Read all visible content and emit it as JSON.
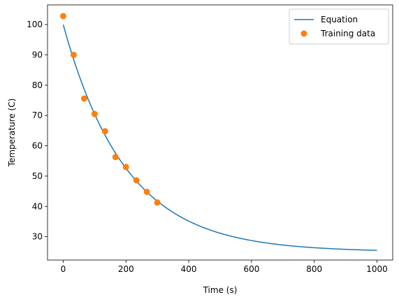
{
  "chart_data": {
    "type": "line",
    "title": "",
    "xlabel": "Time (s)",
    "ylabel": "Temperature (C)",
    "xlim": [
      -50,
      1050
    ],
    "ylim": [
      22.3,
      106.5
    ],
    "xticks": [
      0,
      200,
      400,
      600,
      800,
      1000
    ],
    "yticks": [
      30,
      40,
      50,
      60,
      70,
      80,
      90,
      100
    ],
    "grid": false,
    "legend_position": "top-right",
    "series": [
      {
        "name": "Equation",
        "kind": "line",
        "color": "#1f77b4",
        "model": {
          "ambient": 25,
          "initial": 100,
          "rate": 0.005
        },
        "x_range": [
          0,
          1000
        ]
      },
      {
        "name": "Training data",
        "kind": "scatter",
        "color": "#ff7f0e",
        "x": [
          0,
          33.3,
          66.7,
          100,
          133.3,
          166.7,
          200,
          233.3,
          266.7,
          300
        ],
        "y": [
          102.8,
          90.0,
          75.6,
          70.5,
          64.8,
          56.3,
          53.0,
          48.6,
          44.8,
          41.3
        ]
      }
    ]
  }
}
